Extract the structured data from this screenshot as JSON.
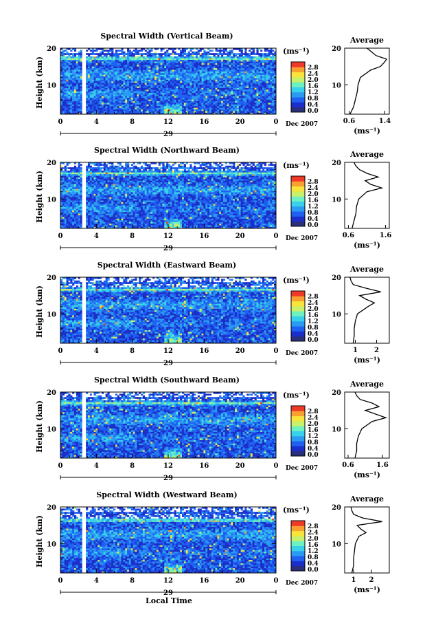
{
  "figure": {
    "date_label": "Dec 2007",
    "day_label": "29",
    "xlabel": "Local Time",
    "ylabel": "Height (km)",
    "unit_label": "(ms⁻¹)",
    "avg_title": "Average",
    "colorbar_ticks": [
      "0.0",
      "0.4",
      "0.8",
      "1.2",
      "1.6",
      "2.0",
      "2.4",
      "2.8"
    ],
    "colorbar_colors": [
      "#2a2f7a",
      "#1c2ec8",
      "#1f5ff2",
      "#2a9af2",
      "#38d0ea",
      "#6ff0c0",
      "#c8f06a",
      "#f8e43a",
      "#f8a030",
      "#ef3a2a"
    ]
  },
  "chart_data": [
    {
      "type": "heatmap",
      "title": "Spectral Width (Vertical Beam)",
      "xlabel": "Local Time",
      "ylabel": "Height (km)",
      "x_ticks": [
        "0",
        "4",
        "8",
        "12",
        "16",
        "20",
        "0"
      ],
      "xlim": [
        0,
        24
      ],
      "y_ticks": [
        "10",
        "20"
      ],
      "ylim": [
        2,
        20
      ],
      "colorbar_range": [
        0.0,
        3.0
      ],
      "average_profile": {
        "xlabel": "(ms⁻¹)",
        "x_ticks": [
          "0.6",
          "1.4"
        ],
        "xlim": [
          0.5,
          1.5
        ],
        "height_km": [
          2,
          4,
          6,
          8,
          10,
          12,
          14,
          15,
          16,
          17,
          18,
          19,
          20
        ],
        "width_ms": [
          0.62,
          0.7,
          0.74,
          0.78,
          0.8,
          0.85,
          1.08,
          1.3,
          1.38,
          1.44,
          1.2,
          1.1,
          1.0
        ]
      }
    },
    {
      "type": "heatmap",
      "title": "Spectral Width (Northward Beam)",
      "xlabel": "Local Time",
      "ylabel": "Height (km)",
      "x_ticks": [
        "0",
        "4",
        "8",
        "12",
        "16",
        "20",
        "0"
      ],
      "xlim": [
        0,
        24
      ],
      "y_ticks": [
        "10",
        "20"
      ],
      "ylim": [
        2,
        20
      ],
      "colorbar_range": [
        0.0,
        3.0
      ],
      "average_profile": {
        "xlabel": "(ms⁻¹)",
        "x_ticks": [
          "0.6",
          "1.6"
        ],
        "xlim": [
          0.5,
          1.7
        ],
        "height_km": [
          2,
          4,
          6,
          8,
          10,
          12,
          13,
          14,
          15,
          16,
          17,
          18,
          19,
          20
        ],
        "width_ms": [
          0.7,
          0.75,
          0.8,
          0.82,
          0.88,
          1.1,
          1.5,
          1.2,
          1.05,
          1.4,
          1.1,
          0.9,
          0.8,
          0.75
        ]
      }
    },
    {
      "type": "heatmap",
      "title": "Spectral Width (Eastward Beam)",
      "xlabel": "Local Time",
      "ylabel": "Height (km)",
      "x_ticks": [
        "0",
        "4",
        "8",
        "12",
        "16",
        "20",
        "0"
      ],
      "xlim": [
        0,
        24
      ],
      "y_ticks": [
        "10",
        "20"
      ],
      "ylim": [
        2,
        20
      ],
      "colorbar_range": [
        0.0,
        3.0
      ],
      "average_profile": {
        "xlabel": "(ms⁻¹)",
        "x_ticks": [
          "1",
          "2"
        ],
        "xlim": [
          0.5,
          2.6
        ],
        "height_km": [
          2,
          4,
          6,
          8,
          10,
          12,
          13,
          14,
          15,
          16,
          17,
          18,
          19,
          20
        ],
        "width_ms": [
          0.9,
          0.95,
          0.95,
          1.0,
          1.1,
          1.6,
          1.9,
          1.5,
          1.2,
          2.2,
          1.5,
          0.9,
          0.8,
          0.75
        ]
      }
    },
    {
      "type": "heatmap",
      "title": "Spectral Width (Southward Beam)",
      "xlabel": "Local Time",
      "ylabel": "Height (km)",
      "x_ticks": [
        "0",
        "4",
        "8",
        "12",
        "16",
        "20",
        "0"
      ],
      "xlim": [
        0,
        24
      ],
      "y_ticks": [
        "10",
        "20"
      ],
      "ylim": [
        2,
        20
      ],
      "colorbar_range": [
        0.0,
        3.0
      ],
      "average_profile": {
        "xlabel": "(ms⁻¹)",
        "x_ticks": [
          "0.6",
          "1.6"
        ],
        "xlim": [
          0.5,
          1.8
        ],
        "height_km": [
          2,
          4,
          6,
          8,
          10,
          12,
          13,
          14,
          15,
          16,
          17,
          18,
          19,
          20
        ],
        "width_ms": [
          0.8,
          0.85,
          0.85,
          0.9,
          1.0,
          1.3,
          1.7,
          1.4,
          1.1,
          1.5,
          1.3,
          0.95,
          0.85,
          0.8
        ]
      }
    },
    {
      "type": "heatmap",
      "title": "Spectral Width (Westward Beam)",
      "xlabel": "Local Time",
      "ylabel": "Height (km)",
      "x_ticks": [
        "0",
        "4",
        "8",
        "12",
        "16",
        "20",
        "0"
      ],
      "xlim": [
        0,
        24
      ],
      "y_ticks": [
        "10",
        "20"
      ],
      "ylim": [
        2,
        20
      ],
      "colorbar_range": [
        0.0,
        3.0
      ],
      "average_profile": {
        "xlabel": "(ms⁻¹)",
        "x_ticks": [
          "1",
          "2"
        ],
        "xlim": [
          0.5,
          3.0
        ],
        "height_km": [
          2,
          4,
          6,
          8,
          10,
          12,
          13,
          14,
          15,
          16,
          17,
          18,
          19,
          20
        ],
        "width_ms": [
          0.9,
          1.0,
          1.0,
          1.05,
          1.1,
          1.3,
          1.7,
          1.4,
          1.2,
          2.6,
          1.5,
          1.0,
          0.9,
          0.85
        ]
      }
    }
  ]
}
